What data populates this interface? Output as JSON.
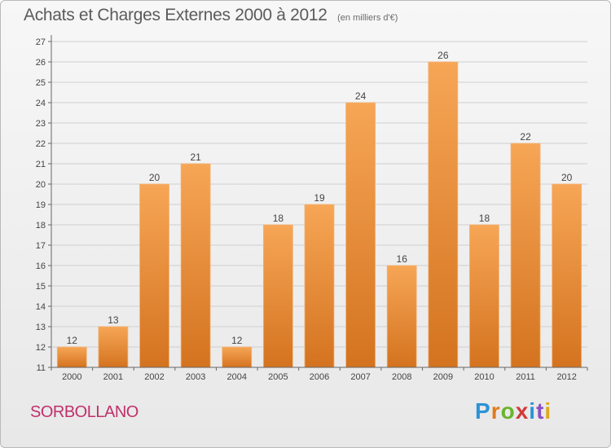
{
  "header": {
    "title": "Achats et Charges Externes 2000 à 2012",
    "subtitle": "(en milliers d'€)"
  },
  "footer": {
    "commune": "SORBOLLANO",
    "logo_letters": [
      "P",
      "r",
      "o",
      "x",
      "i",
      "t",
      "i"
    ],
    "logo_colors": [
      "#2b93d6",
      "#e07b1a",
      "#6ab42c",
      "#d13a3a",
      "#2b93d6",
      "#8a4fc4",
      "#e0a91a"
    ]
  },
  "colors": {
    "bar_top": "#f6a656",
    "bar_bottom": "#d4731f",
    "grid": "#cfcfcf",
    "axis": "#666666",
    "label": "#444444"
  },
  "chart_data": {
    "type": "bar",
    "categories": [
      "2000",
      "2001",
      "2002",
      "2003",
      "2004",
      "2005",
      "2006",
      "2007",
      "2008",
      "2009",
      "2010",
      "2011",
      "2012"
    ],
    "values": [
      12,
      13,
      20,
      21,
      12,
      18,
      19,
      24,
      16,
      26,
      18,
      22,
      20
    ],
    "data_labels": [
      "12",
      "13",
      "20",
      "21",
      "12",
      "18",
      "19",
      "24",
      "16",
      "26",
      "18",
      "22",
      "20"
    ],
    "title": "Achats et Charges Externes 2000 à 2012",
    "subtitle": "(en milliers d'€)",
    "xlabel": "",
    "ylabel": "",
    "ylim": [
      11,
      27
    ],
    "yticks": [
      "11",
      "12",
      "13",
      "14",
      "15",
      "16",
      "17",
      "18",
      "19",
      "20",
      "21",
      "22",
      "23",
      "24",
      "25",
      "26",
      "27"
    ],
    "grid": true
  }
}
